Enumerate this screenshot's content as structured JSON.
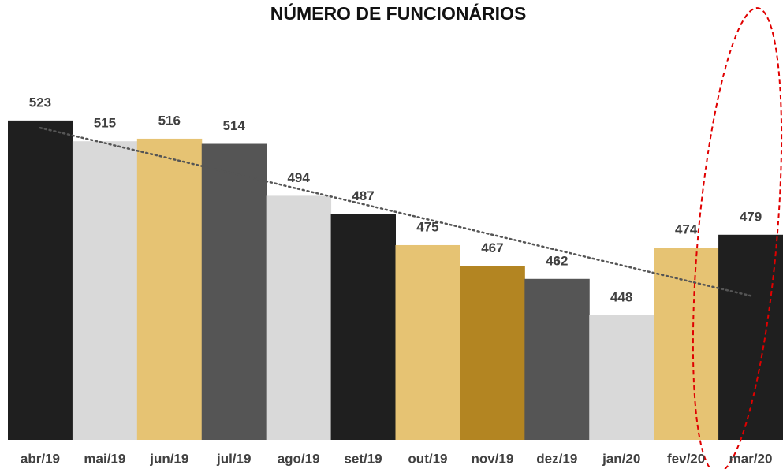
{
  "chart_data": {
    "type": "bar",
    "title": "NÚMERO DE FUNCIONÁRIOS",
    "categories": [
      "abr/19",
      "mai/19",
      "jun/19",
      "jul/19",
      "ago/19",
      "set/19",
      "out/19",
      "nov/19",
      "dez/19",
      "jan/20",
      "fev/20",
      "mar/20"
    ],
    "values": [
      523,
      515,
      516,
      514,
      494,
      487,
      475,
      467,
      462,
      448,
      474,
      479
    ],
    "colors": [
      "#1f1f1f",
      "#d9d9d9",
      "#e6c373",
      "#555555",
      "#d9d9d9",
      "#1f1f1f",
      "#e6c373",
      "#b38522",
      "#555555",
      "#d9d9d9",
      "#e6c373",
      "#1f1f1f"
    ],
    "ylim": [
      400,
      560
    ],
    "trendline": true
  }
}
